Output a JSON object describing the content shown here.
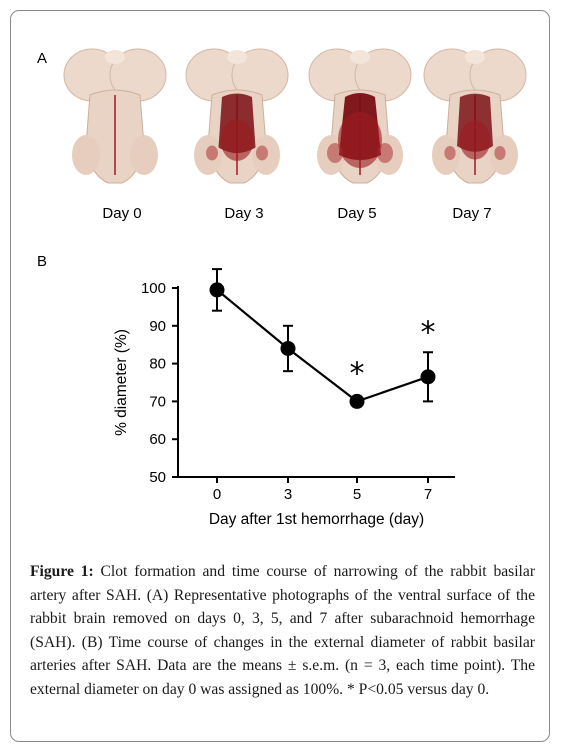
{
  "figure": {
    "panel_a_label": "A",
    "panel_b_label": "B",
    "photos": [
      {
        "label": "Day 0",
        "clot": 0.05
      },
      {
        "label": "Day 3",
        "clot": 0.75
      },
      {
        "label": "Day 5",
        "clot": 1.0
      },
      {
        "label": "Day 7",
        "clot": 0.7
      }
    ],
    "caption_title": "Figure 1:",
    "caption_text": "Clot formation and time course of narrowing of the rabbit basilar artery after SAH. (A) Representative photographs of the ventral surface of the rabbit brain removed on days 0, 3, 5, and 7 after subarachnoid hemorrhage (SAH). (B) Time course of changes in the external diameter of rabbit basilar arteries after SAH. Data are the means ± s.e.m. (n = 3, each time point). The external diameter on day 0 was assigned as 100%. * P<0.05 versus day 0."
  },
  "chart_data": {
    "type": "line",
    "xlabel": "Day after 1st hemorrhage (day)",
    "ylabel": "% diameter (%)",
    "ylim": [
      50,
      100
    ],
    "yticks": [
      50,
      60,
      70,
      80,
      90,
      100
    ],
    "categories": [
      "0",
      "3",
      "5",
      "7"
    ],
    "series": [
      {
        "values": [
          99.5,
          84,
          70,
          76.5
        ],
        "error": [
          5.5,
          6,
          0.8,
          6.5
        ],
        "significance": [
          "",
          "",
          "*",
          "*"
        ]
      }
    ],
    "grid": false,
    "legend": "none",
    "colors": {
      "line": "#000000",
      "marker": "#000000"
    }
  }
}
